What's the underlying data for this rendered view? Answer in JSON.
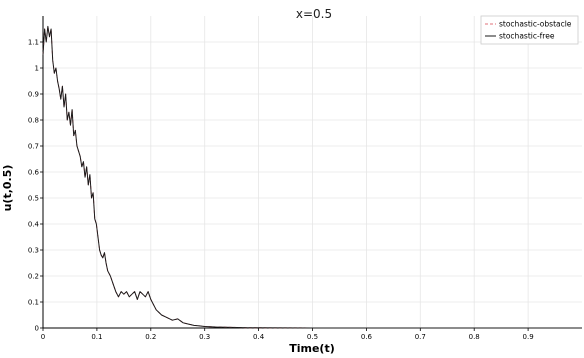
{
  "chart_data": {
    "type": "line",
    "title": "x=0.5",
    "xlabel": "Time(t)",
    "ylabel": "u(t,0.5)",
    "xlim": [
      0,
      1
    ],
    "ylim": [
      0,
      1.2
    ],
    "x_ticks": [
      "0",
      "0.1",
      "0.2",
      "0.3",
      "0.4",
      "0.5",
      "0.6",
      "0.7",
      "0.8",
      "0.9"
    ],
    "y_ticks": [
      "0",
      "0.1",
      "0.2",
      "0.3",
      "0.4",
      "0.5",
      "0.6",
      "0.7",
      "0.8",
      "0.9",
      "1",
      "1.1"
    ],
    "grid": true,
    "legend_position": "top-right",
    "series": [
      {
        "name": "stochastic-obstacle",
        "color": "#e0707a",
        "dash": "dashed",
        "x": [
          0,
          0.003,
          0.006,
          0.009,
          0.012,
          0.015,
          0.018,
          0.021,
          0.024,
          0.027,
          0.03,
          0.033,
          0.036,
          0.039,
          0.042,
          0.045,
          0.048,
          0.051,
          0.054,
          0.057,
          0.06,
          0.063,
          0.066,
          0.069,
          0.072,
          0.075,
          0.078,
          0.081,
          0.084,
          0.087,
          0.09,
          0.093,
          0.096,
          0.099,
          0.102,
          0.105,
          0.108,
          0.111,
          0.114,
          0.117,
          0.12,
          0.125,
          0.13,
          0.135,
          0.14,
          0.145,
          0.15,
          0.155,
          0.16,
          0.165,
          0.17,
          0.175,
          0.18,
          0.185,
          0.19,
          0.195,
          0.2,
          0.205,
          0.21,
          0.215,
          0.22,
          0.23,
          0.24,
          0.25,
          0.26,
          0.27,
          0.28,
          0.29,
          0.3,
          0.32,
          0.34,
          0.36,
          0.38,
          0.4,
          0.45,
          0.5,
          0.6,
          0.7,
          0.8,
          0.9,
          1.0
        ],
        "y": [
          1.05,
          1.15,
          1.1,
          1.16,
          1.12,
          1.15,
          1.03,
          0.98,
          1.0,
          0.95,
          0.92,
          0.88,
          0.93,
          0.85,
          0.9,
          0.8,
          0.83,
          0.78,
          0.84,
          0.74,
          0.76,
          0.7,
          0.68,
          0.66,
          0.62,
          0.64,
          0.58,
          0.62,
          0.55,
          0.59,
          0.5,
          0.52,
          0.42,
          0.4,
          0.35,
          0.3,
          0.28,
          0.27,
          0.29,
          0.25,
          0.22,
          0.2,
          0.17,
          0.14,
          0.12,
          0.14,
          0.13,
          0.14,
          0.12,
          0.13,
          0.14,
          0.11,
          0.14,
          0.13,
          0.12,
          0.14,
          0.11,
          0.09,
          0.07,
          0.06,
          0.05,
          0.04,
          0.03,
          0.035,
          0.02,
          0.015,
          0.01,
          0.008,
          0.006,
          0.004,
          0.003,
          0.002,
          0.001,
          0.0008,
          0.0004,
          0.0002,
          0.0001,
          0,
          0,
          0,
          0
        ]
      },
      {
        "name": "stochastic-free",
        "color": "#1a1a1a",
        "dash": "solid",
        "x": [
          0,
          0.003,
          0.006,
          0.009,
          0.012,
          0.015,
          0.018,
          0.021,
          0.024,
          0.027,
          0.03,
          0.033,
          0.036,
          0.039,
          0.042,
          0.045,
          0.048,
          0.051,
          0.054,
          0.057,
          0.06,
          0.063,
          0.066,
          0.069,
          0.072,
          0.075,
          0.078,
          0.081,
          0.084,
          0.087,
          0.09,
          0.093,
          0.096,
          0.099,
          0.102,
          0.105,
          0.108,
          0.111,
          0.114,
          0.117,
          0.12,
          0.125,
          0.13,
          0.135,
          0.14,
          0.145,
          0.15,
          0.155,
          0.16,
          0.165,
          0.17,
          0.175,
          0.18,
          0.185,
          0.19,
          0.195,
          0.2,
          0.205,
          0.21,
          0.215,
          0.22,
          0.23,
          0.24,
          0.25,
          0.26,
          0.27,
          0.28,
          0.29,
          0.3,
          0.32,
          0.34,
          0.36,
          0.38,
          0.4,
          0.45,
          0.5,
          0.6,
          0.7,
          0.8,
          0.9,
          1.0
        ],
        "y": [
          1.05,
          1.15,
          1.1,
          1.16,
          1.12,
          1.15,
          1.03,
          0.98,
          1.0,
          0.95,
          0.92,
          0.88,
          0.93,
          0.85,
          0.9,
          0.8,
          0.83,
          0.78,
          0.84,
          0.74,
          0.76,
          0.7,
          0.68,
          0.66,
          0.62,
          0.64,
          0.58,
          0.62,
          0.55,
          0.59,
          0.5,
          0.52,
          0.42,
          0.4,
          0.35,
          0.3,
          0.28,
          0.27,
          0.29,
          0.25,
          0.22,
          0.2,
          0.17,
          0.14,
          0.12,
          0.14,
          0.13,
          0.14,
          0.12,
          0.13,
          0.14,
          0.11,
          0.14,
          0.13,
          0.12,
          0.14,
          0.11,
          0.09,
          0.07,
          0.06,
          0.05,
          0.04,
          0.03,
          0.035,
          0.02,
          0.015,
          0.01,
          0.008,
          0.006,
          0.004,
          0.003,
          0.002,
          0.001,
          0.0008,
          0.0004,
          0.0002,
          0.0001,
          0,
          0,
          0,
          0
        ]
      }
    ]
  }
}
